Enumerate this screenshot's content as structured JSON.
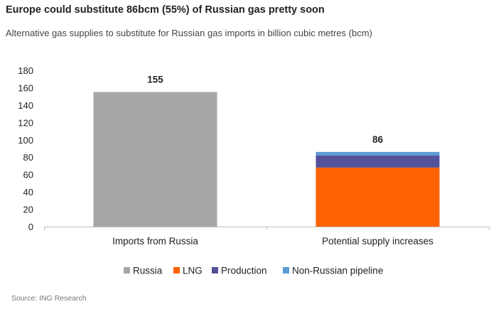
{
  "chart_data": {
    "type": "bar",
    "stacked": true,
    "title": "Europe could substitute 86bcm (55%) of Russian gas pretty soon",
    "subtitle": "Alternative gas supplies to substitute for Russian gas imports in billion cubic metres (bcm)",
    "categories": [
      "Imports from Russia",
      "Potential supply increases"
    ],
    "series": [
      {
        "name": "Russia",
        "color": "#a6a6a6",
        "values": [
          155,
          0
        ]
      },
      {
        "name": "LNG",
        "color": "#ff6200",
        "values": [
          0,
          68
        ]
      },
      {
        "name": "Production",
        "color": "#525199",
        "values": [
          0,
          14
        ]
      },
      {
        "name": "Non-Russian pipeline",
        "color": "#5b9bd5",
        "values": [
          0,
          4
        ]
      }
    ],
    "totals": [
      "155",
      "86"
    ],
    "ylim": [
      0,
      180
    ],
    "yticks": [
      0,
      20,
      40,
      60,
      80,
      100,
      120,
      140,
      160,
      180
    ],
    "legend_position": "bottom",
    "grid": false,
    "source": "Source: ING Research"
  }
}
